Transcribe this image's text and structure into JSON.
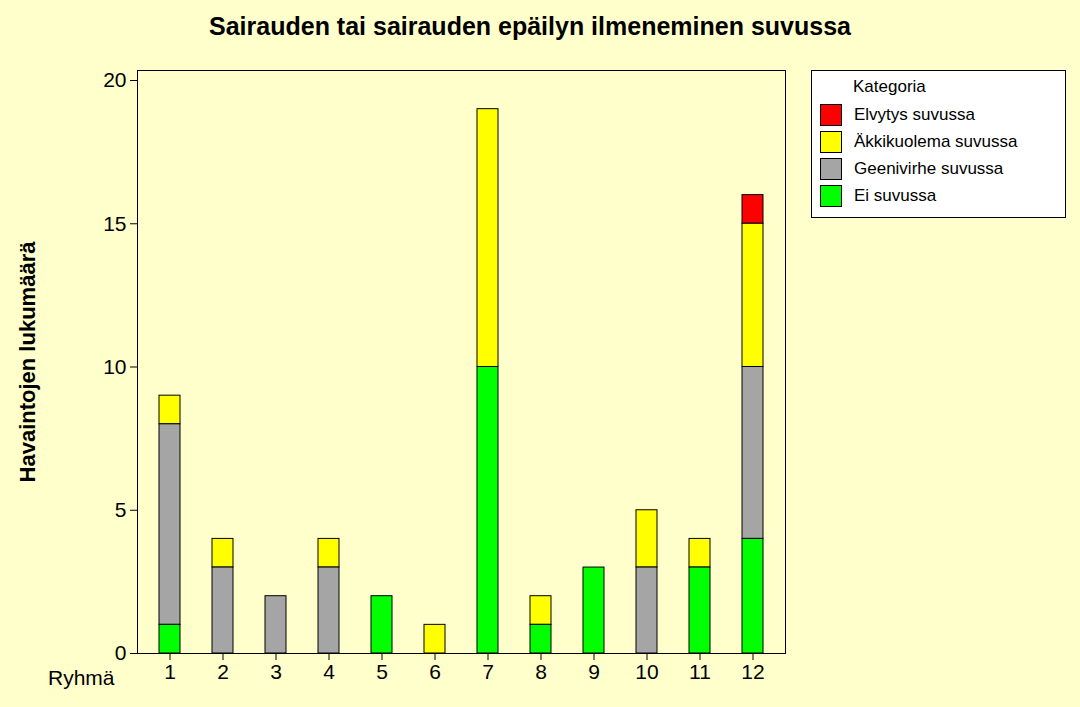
{
  "chart_data": {
    "type": "bar",
    "title": "Sairauden tai sairauden epäilyn ilmeneminen suvussa",
    "xlabel": "Ryhmä",
    "ylabel": "Havaintojen lukumäärä",
    "legend_title": "Kategoria",
    "categories": [
      1,
      2,
      3,
      4,
      5,
      6,
      7,
      8,
      9,
      10,
      11,
      12
    ],
    "series": [
      {
        "name": "Elvytys suvussa",
        "color": "#FF0000",
        "values": [
          0,
          0,
          0,
          0,
          0,
          0,
          0,
          0,
          0,
          0,
          0,
          1
        ]
      },
      {
        "name": "Äkkikuolema suvussa",
        "color": "#FFFF00",
        "values": [
          1,
          1,
          0,
          1,
          0,
          1,
          9,
          1,
          0,
          2,
          1,
          5
        ]
      },
      {
        "name": "Geenivirhe suvussa",
        "color": "#A5A5A5",
        "values": [
          7,
          3,
          2,
          3,
          0,
          0,
          0,
          0,
          0,
          3,
          0,
          6
        ]
      },
      {
        "name": "Ei suvussa",
        "color": "#00FF00",
        "values": [
          1,
          0,
          0,
          0,
          2,
          0,
          10,
          1,
          3,
          0,
          3,
          4
        ]
      }
    ],
    "ylim": [
      0,
      20.35
    ],
    "yticks": [
      0,
      5,
      10,
      15,
      20
    ],
    "grid": false,
    "stacked": true,
    "legend": "right"
  }
}
